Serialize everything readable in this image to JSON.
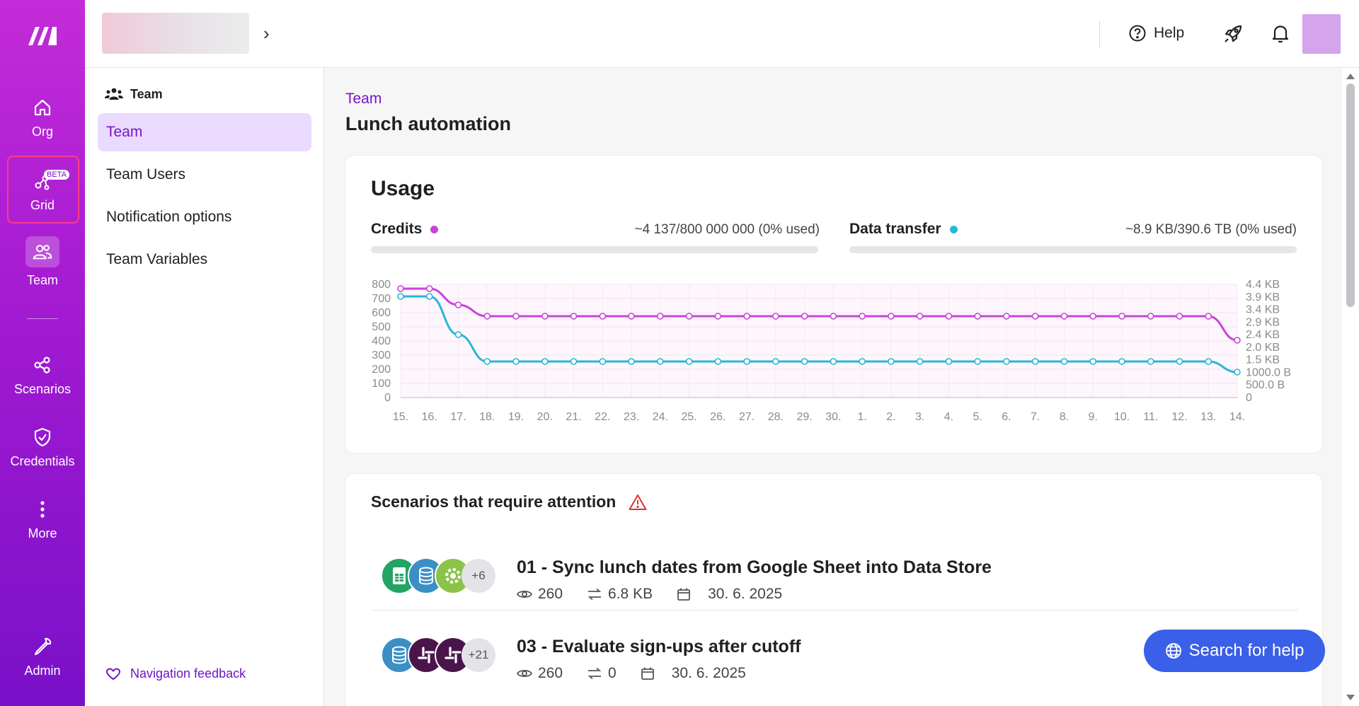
{
  "rail": {
    "items": [
      {
        "label": "Org",
        "icon": "home-icon"
      },
      {
        "label": "Grid",
        "icon": "grid-nodes-icon",
        "badge": "BETA"
      },
      {
        "label": "Team",
        "icon": "team-icon"
      },
      {
        "label": "Scenarios",
        "icon": "scenarios-icon"
      },
      {
        "label": "Credentials",
        "icon": "shield-check-icon"
      },
      {
        "label": "More",
        "icon": "more-vertical-icon"
      },
      {
        "label": "Admin",
        "icon": "wrench-icon"
      }
    ]
  },
  "topbar": {
    "help_label": "Help"
  },
  "subnav": {
    "title": "Team",
    "items": [
      {
        "label": "Team",
        "active": true
      },
      {
        "label": "Team Users"
      },
      {
        "label": "Notification options"
      },
      {
        "label": "Team Variables"
      }
    ],
    "feedback_label": "Navigation feedback"
  },
  "page": {
    "breadcrumb": "Team",
    "title": "Lunch automation"
  },
  "usage": {
    "title": "Usage",
    "credits_label": "Credits",
    "credits_value": "~4 137/800 000 000 (0% used)",
    "credits_used_fraction": 0,
    "transfer_label": "Data transfer",
    "transfer_value": "~8.9 KB/390.6 TB (0% used)",
    "transfer_used_fraction": 0,
    "colors": {
      "credits": "#c844d9",
      "transfer": "#29b6d6"
    }
  },
  "chart_data": {
    "type": "line",
    "x": [
      "15.",
      "16.",
      "17.",
      "18.",
      "19.",
      "20.",
      "21.",
      "22.",
      "23.",
      "24.",
      "25.",
      "26.",
      "27.",
      "28.",
      "29.",
      "30.",
      "1.",
      "2.",
      "3.",
      "4.",
      "5.",
      "6.",
      "7.",
      "8.",
      "9.",
      "10.",
      "11.",
      "12.",
      "13.",
      "14."
    ],
    "y_left_ticks": [
      "800",
      "700",
      "600",
      "500",
      "400",
      "300",
      "200",
      "100",
      "0"
    ],
    "y_right_ticks": [
      "4.4 KB",
      "3.9 KB",
      "3.4 KB",
      "2.9 KB",
      "2.4 KB",
      "2.0 KB",
      "1.5 KB",
      "1000.0 B",
      "500.0 B",
      "0"
    ],
    "ylim_left": [
      0,
      800
    ],
    "series": [
      {
        "axis": "left",
        "color": "#c844d9",
        "values": [
          770,
          770,
          655,
          575,
          575,
          575,
          575,
          575,
          575,
          575,
          575,
          575,
          575,
          575,
          575,
          575,
          575,
          575,
          575,
          575,
          575,
          575,
          575,
          575,
          575,
          575,
          575,
          575,
          575,
          405
        ]
      },
      {
        "axis": "right",
        "color": "#29b6d6",
        "values": [
          715,
          715,
          445,
          255,
          255,
          255,
          255,
          255,
          255,
          255,
          255,
          255,
          255,
          255,
          255,
          255,
          255,
          255,
          255,
          255,
          255,
          255,
          255,
          255,
          255,
          255,
          255,
          255,
          255,
          180
        ]
      }
    ]
  },
  "attention": {
    "title": "Scenarios that require attention",
    "scenarios": [
      {
        "name": "01 - Sync lunch dates from Google Sheet into Data Store",
        "ops": "260",
        "transfer": "6.8 KB",
        "date": "30. 6. 2025",
        "more": "+6",
        "apps": [
          {
            "icon": "google-sheets-icon",
            "color": "#21a464"
          },
          {
            "icon": "data-store-icon",
            "color": "#3a8fc4"
          },
          {
            "icon": "tools-gear-icon",
            "color": "#8bc34a"
          }
        ]
      },
      {
        "name": "03 - Evaluate sign-ups after cutoff",
        "ops": "260",
        "transfer": "0",
        "date": "30. 6. 2025",
        "more": "+21",
        "apps": [
          {
            "icon": "data-store-icon",
            "color": "#3a8fc4"
          },
          {
            "icon": "slack-icon",
            "color": "#4a154b"
          },
          {
            "icon": "slack-icon",
            "color": "#4a154b"
          }
        ]
      }
    ]
  },
  "search_help_label": "Search for help"
}
